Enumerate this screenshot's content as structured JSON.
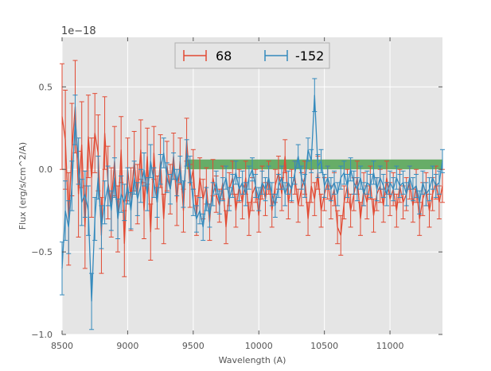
{
  "chart_data": {
    "type": "line",
    "title": "",
    "xlabel": "Wavelength (A)",
    "ylabel": "Flux (erg/s/cm^2/A)",
    "offset_text": "1e−18",
    "xlim": [
      8500,
      11400
    ],
    "ylim": [
      -1.0,
      0.8
    ],
    "xticks": [
      8500,
      9000,
      9500,
      10000,
      10500,
      11000
    ],
    "xtick_labels": [
      "8500",
      "9000",
      "9500",
      "10000",
      "10500",
      "11000"
    ],
    "yticks": [
      -1.0,
      -0.5,
      0.0,
      0.5
    ],
    "ytick_labels": [
      "−1.0",
      "−0.5",
      "0.0",
      "0.5"
    ],
    "grid": true,
    "legend_position": "top-center",
    "band": {
      "x_start": 9450,
      "x_end": 11400,
      "y_low": 0.0,
      "y_high": 0.06,
      "color": "#3c9a3c"
    },
    "x": [
      8500,
      8525,
      8550,
      8575,
      8600,
      8625,
      8650,
      8675,
      8700,
      8725,
      8750,
      8775,
      8800,
      8825,
      8850,
      8875,
      8900,
      8925,
      8950,
      8975,
      9000,
      9025,
      9050,
      9075,
      9100,
      9125,
      9150,
      9175,
      9200,
      9225,
      9250,
      9275,
      9300,
      9325,
      9350,
      9375,
      9400,
      9425,
      9450,
      9475,
      9500,
      9525,
      9550,
      9575,
      9600,
      9625,
      9650,
      9675,
      9700,
      9725,
      9750,
      9775,
      9800,
      9825,
      9850,
      9875,
      9900,
      9925,
      9950,
      9975,
      10000,
      10025,
      10050,
      10075,
      10100,
      10125,
      10150,
      10175,
      10200,
      10225,
      10250,
      10275,
      10300,
      10325,
      10350,
      10375,
      10400,
      10425,
      10450,
      10475,
      10500,
      10525,
      10550,
      10575,
      10600,
      10625,
      10650,
      10675,
      10700,
      10725,
      10750,
      10775,
      10800,
      10825,
      10850,
      10875,
      10900,
      10925,
      10950,
      10975,
      11000,
      11025,
      11050,
      11075,
      11100,
      11125,
      11150,
      11175,
      11200,
      11225,
      11250,
      11275,
      11300,
      11325,
      11350,
      11375,
      11400
    ],
    "series": [
      {
        "name": "68",
        "color": "#e24a33",
        "values": [
          0.32,
          0.18,
          -0.3,
          0.12,
          0.38,
          -0.15,
          0.15,
          -0.35,
          0.2,
          -0.05,
          0.22,
          0.1,
          -0.4,
          0.22,
          -0.08,
          -0.2,
          0.05,
          -0.3,
          0.12,
          -0.45,
          0.0,
          -0.18,
          0.05,
          -0.15,
          0.12,
          -0.25,
          0.08,
          -0.38,
          0.1,
          -0.2,
          0.05,
          -0.3,
          0.02,
          -0.12,
          0.08,
          -0.2,
          0.05,
          -0.25,
          0.18,
          -0.1,
          0.0,
          -0.28,
          -0.05,
          -0.18,
          -0.1,
          -0.32,
          -0.05,
          -0.15,
          -0.22,
          -0.08,
          -0.35,
          -0.12,
          -0.05,
          -0.25,
          -0.1,
          -0.2,
          -0.05,
          -0.3,
          -0.15,
          -0.1,
          -0.28,
          -0.08,
          -0.18,
          -0.05,
          -0.25,
          -0.1,
          -0.02,
          -0.15,
          0.08,
          -0.2,
          -0.1,
          -0.05,
          -0.22,
          -0.12,
          -0.05,
          -0.3,
          -0.1,
          -0.18,
          -0.02,
          -0.25,
          -0.15,
          -0.08,
          -0.2,
          -0.12,
          -0.35,
          -0.4,
          -0.2,
          -0.1,
          -0.25,
          -0.15,
          -0.05,
          -0.3,
          -0.12,
          -0.2,
          -0.08,
          -0.28,
          -0.15,
          -0.1,
          -0.22,
          -0.05,
          -0.18,
          -0.12,
          -0.25,
          -0.1,
          -0.2,
          -0.15,
          -0.08,
          -0.22,
          -0.1,
          -0.3,
          -0.18,
          -0.12,
          -0.25,
          -0.15,
          -0.08,
          -0.2,
          -0.1
        ],
        "errors": [
          0.32,
          0.3,
          0.28,
          0.28,
          0.28,
          0.26,
          0.26,
          0.25,
          0.25,
          0.24,
          0.24,
          0.23,
          0.23,
          0.22,
          0.22,
          0.21,
          0.21,
          0.2,
          0.2,
          0.2,
          0.19,
          0.19,
          0.18,
          0.18,
          0.18,
          0.17,
          0.17,
          0.17,
          0.16,
          0.16,
          0.16,
          0.15,
          0.15,
          0.15,
          0.14,
          0.14,
          0.14,
          0.13,
          0.13,
          0.13,
          0.12,
          0.12,
          0.12,
          0.12,
          0.11,
          0.11,
          0.11,
          0.11,
          0.1,
          0.1,
          0.1,
          0.1,
          0.1,
          0.1,
          0.1,
          0.1,
          0.1,
          0.1,
          0.1,
          0.1,
          0.1,
          0.1,
          0.1,
          0.1,
          0.1,
          0.1,
          0.1,
          0.1,
          0.1,
          0.1,
          0.1,
          0.1,
          0.1,
          0.1,
          0.1,
          0.1,
          0.1,
          0.1,
          0.1,
          0.1,
          0.1,
          0.1,
          0.1,
          0.1,
          0.1,
          0.12,
          0.1,
          0.1,
          0.1,
          0.1,
          0.1,
          0.1,
          0.1,
          0.1,
          0.1,
          0.1,
          0.1,
          0.1,
          0.1,
          0.1,
          0.1,
          0.1,
          0.1,
          0.1,
          0.1,
          0.1,
          0.1,
          0.1,
          0.1,
          0.1,
          0.1,
          0.1,
          0.1,
          0.1,
          0.1,
          0.1,
          0.1
        ]
      },
      {
        "name": "-152",
        "color": "#348abd",
        "values": [
          -0.6,
          -0.25,
          -0.35,
          -0.1,
          0.3,
          0.05,
          -0.2,
          -0.15,
          -0.25,
          -0.8,
          -0.3,
          -0.05,
          -0.35,
          -0.2,
          -0.1,
          -0.25,
          -0.05,
          -0.3,
          -0.15,
          -0.2,
          -0.1,
          -0.25,
          -0.05,
          -0.18,
          -0.1,
          0.0,
          -0.15,
          0.05,
          -0.08,
          -0.2,
          0.0,
          0.1,
          -0.05,
          -0.12,
          0.02,
          -0.08,
          0.0,
          -0.15,
          0.1,
          0.0,
          -0.2,
          -0.3,
          -0.25,
          -0.35,
          -0.18,
          -0.28,
          -0.15,
          -0.08,
          -0.2,
          -0.12,
          -0.05,
          -0.18,
          -0.1,
          -0.02,
          -0.12,
          -0.08,
          -0.15,
          -0.05,
          0.0,
          -0.1,
          -0.18,
          -0.08,
          -0.12,
          -0.05,
          -0.15,
          -0.22,
          -0.1,
          -0.05,
          -0.15,
          -0.08,
          -0.12,
          -0.02,
          0.08,
          -0.05,
          -0.1,
          0.12,
          0.05,
          0.45,
          0.02,
          0.05,
          -0.1,
          -0.05,
          -0.12,
          -0.08,
          -0.15,
          -0.05,
          -0.02,
          -0.1,
          0.0,
          -0.08,
          -0.12,
          -0.05,
          -0.15,
          -0.08,
          -0.1,
          -0.02,
          -0.12,
          -0.05,
          -0.1,
          -0.15,
          -0.08,
          -0.12,
          -0.05,
          -0.1,
          -0.08,
          -0.15,
          -0.05,
          -0.12,
          -0.1,
          -0.2,
          -0.08,
          -0.15,
          -0.12,
          -0.05,
          -0.1,
          -0.08,
          0.05
        ],
        "errors": [
          0.16,
          0.18,
          0.16,
          0.15,
          0.15,
          0.14,
          0.14,
          0.14,
          0.15,
          0.17,
          0.13,
          0.13,
          0.13,
          0.13,
          0.12,
          0.12,
          0.12,
          0.12,
          0.11,
          0.11,
          0.11,
          0.11,
          0.1,
          0.1,
          0.1,
          0.1,
          0.1,
          0.1,
          0.09,
          0.09,
          0.09,
          0.09,
          0.09,
          0.09,
          0.08,
          0.08,
          0.08,
          0.08,
          0.08,
          0.08,
          0.08,
          0.08,
          0.08,
          0.08,
          0.07,
          0.07,
          0.07,
          0.07,
          0.07,
          0.07,
          0.07,
          0.07,
          0.07,
          0.07,
          0.07,
          0.07,
          0.07,
          0.07,
          0.07,
          0.07,
          0.07,
          0.07,
          0.07,
          0.07,
          0.07,
          0.07,
          0.07,
          0.07,
          0.07,
          0.07,
          0.07,
          0.07,
          0.07,
          0.07,
          0.07,
          0.07,
          0.07,
          0.1,
          0.07,
          0.07,
          0.07,
          0.07,
          0.07,
          0.07,
          0.07,
          0.07,
          0.07,
          0.07,
          0.07,
          0.07,
          0.07,
          0.07,
          0.07,
          0.07,
          0.07,
          0.07,
          0.07,
          0.07,
          0.07,
          0.07,
          0.07,
          0.07,
          0.07,
          0.07,
          0.07,
          0.07,
          0.07,
          0.07,
          0.07,
          0.07,
          0.07,
          0.07,
          0.07,
          0.07,
          0.07,
          0.07,
          0.07
        ]
      }
    ]
  },
  "colors": {
    "plot_background": "#e5e5e5",
    "grid": "#ffffff",
    "legend_background": "#e5e5e5"
  }
}
